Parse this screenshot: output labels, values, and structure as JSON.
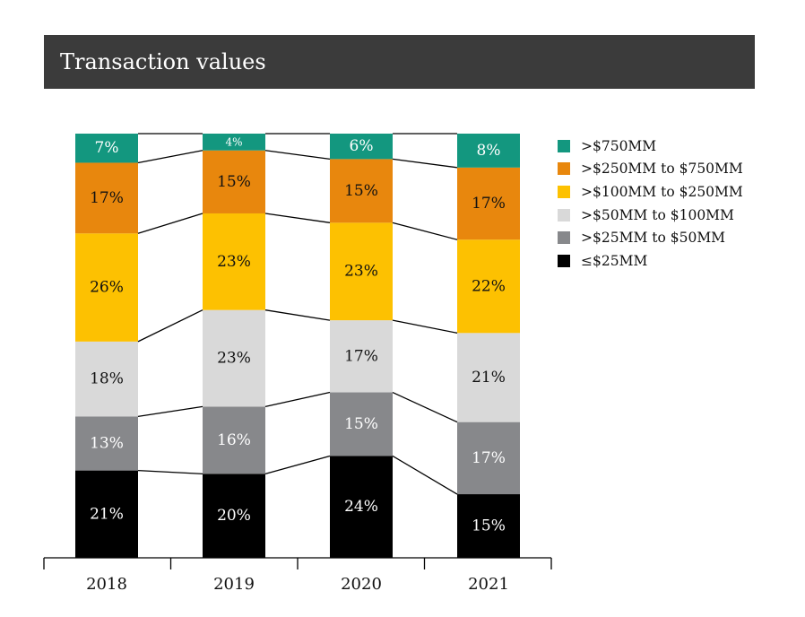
{
  "title": "Transaction values",
  "chart_data": {
    "type": "bar",
    "stacked": true,
    "categories": [
      "2018",
      "2019",
      "2020",
      "2021"
    ],
    "series": [
      {
        "name": "≤$25MM",
        "color": "#000000",
        "label_color": "#ffffff",
        "values": [
          21,
          20,
          24,
          15
        ],
        "labels": [
          "21%",
          "20%",
          "24%",
          "15%"
        ]
      },
      {
        "name": ">$25MM to $50MM",
        "color": "#87888b",
        "label_color": "#ffffff",
        "values": [
          13,
          16,
          15,
          17
        ],
        "labels": [
          "13%",
          "16%",
          "15%",
          "17%"
        ]
      },
      {
        "name": ">$50MM to $100MM",
        "color": "#d9d9d9",
        "label_color": "#111111",
        "values": [
          18,
          23,
          17,
          21
        ],
        "labels": [
          "18%",
          "23%",
          "17%",
          "21%"
        ]
      },
      {
        "name": ">$100MM to $250MM",
        "color": "#fdc101",
        "label_color": "#111111",
        "values": [
          26,
          23,
          23,
          22
        ],
        "labels": [
          "26%",
          "23%",
          "23%",
          "22%"
        ]
      },
      {
        "name": ">$250MM to $750MM",
        "color": "#e8870d",
        "label_color": "#111111",
        "values": [
          17,
          15,
          15,
          17
        ],
        "labels": [
          "17%",
          "15%",
          "15%",
          "17%"
        ]
      },
      {
        "name": ">$750MM",
        "color": "#13977f",
        "label_color": "#ffffff",
        "values": [
          7,
          4,
          6,
          8
        ],
        "labels": [
          "7%",
          "4%",
          "6%",
          "8%"
        ]
      }
    ],
    "legend_order": [
      5,
      4,
      3,
      2,
      1,
      0
    ],
    "legend_position": "right",
    "ylim": [
      0,
      100
    ],
    "grid": false,
    "connector_lines": true
  }
}
